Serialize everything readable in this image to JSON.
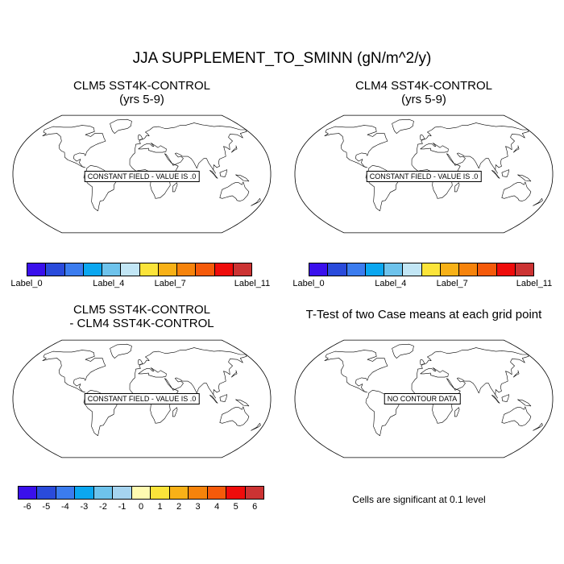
{
  "title": "JJA SUPPLEMENT_TO_SMINN (gN/m^2/y)",
  "panels": [
    {
      "title": "CLM5 SST4K-CONTROL\n(yrs 5-9)",
      "message": "CONSTANT FIELD - VALUE IS .0"
    },
    {
      "title": "CLM4 SST4K-CONTROL\n(yrs 5-9)",
      "message": "CONSTANT FIELD - VALUE IS .0"
    },
    {
      "title": "CLM5 SST4K-CONTROL\n- CLM4 SST4K-CONTROL",
      "message": "CONSTANT FIELD - VALUE IS .0"
    },
    {
      "title": "T-Test of two Case means at each grid point",
      "message": "NO CONTOUR DATA"
    }
  ],
  "colorbar_top": {
    "colors": [
      "#3a10ec",
      "#2a4bdb",
      "#3b7cef",
      "#0ba7f0",
      "#6ec3ec",
      "#c2e6f5",
      "#fbe43a",
      "#f8b117",
      "#f6830b",
      "#f55a0a",
      "#ef0c0b",
      "#cc3333"
    ],
    "labels": [
      "Label_0",
      "Label_4",
      "Label_7",
      "Label_11"
    ]
  },
  "colorbar_diff": {
    "colors": [
      "#3a10ec",
      "#2a4bdb",
      "#3b7cef",
      "#0ba7f0",
      "#6ec3ec",
      "#a6d4f0",
      "#fffbb1",
      "#fbe43a",
      "#f8b117",
      "#f6830b",
      "#f55a0a",
      "#ef0c0b",
      "#cc3333"
    ],
    "labels": [
      "-6",
      "-5",
      "-4",
      "-3",
      "-2",
      "-1",
      "0",
      "1",
      "2",
      "3",
      "4",
      "5",
      "6"
    ]
  },
  "note": "Cells are significant at 0.1 level"
}
